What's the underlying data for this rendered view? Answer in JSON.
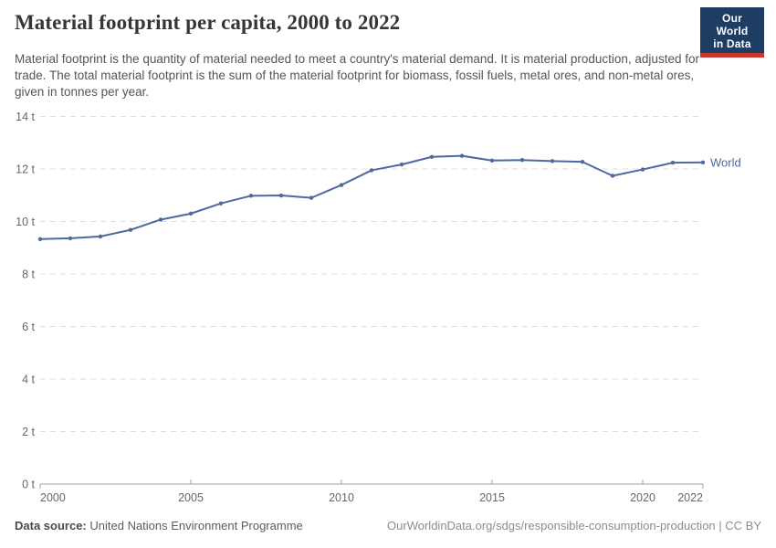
{
  "header": {
    "title": "Material footprint per capita, 2000 to 2022",
    "subtitle": "Material footprint is the quantity of material needed to meet a country's material demand. It is material production, adjusted for trade. The total material footprint is the sum of the material footprint for biomass, fossil fuels, metal ores, and non-metal ores, given in tonnes per year.",
    "logo": {
      "line1": "Our World",
      "line2": "in Data",
      "bg_color": "#1d3d63",
      "accent_color": "#c8362d"
    }
  },
  "chart_data": {
    "type": "line",
    "title": "Material footprint per capita, 2000 to 2022",
    "x": [
      2000,
      2001,
      2002,
      2003,
      2004,
      2005,
      2006,
      2007,
      2008,
      2009,
      2010,
      2011,
      2012,
      2013,
      2014,
      2015,
      2016,
      2017,
      2018,
      2019,
      2020,
      2021,
      2022
    ],
    "series": [
      {
        "name": "World",
        "color": "#4c6a9c",
        "values": [
          9.33,
          9.36,
          9.43,
          9.68,
          10.07,
          10.3,
          10.69,
          10.98,
          10.99,
          10.9,
          11.39,
          11.95,
          12.17,
          12.46,
          12.5,
          12.32,
          12.34,
          12.3,
          12.27,
          11.74,
          11.98,
          12.24,
          12.25
        ]
      }
    ],
    "unit_suffix": " t",
    "ylim": [
      0,
      14
    ],
    "yticks": [
      0,
      2,
      4,
      6,
      8,
      10,
      12,
      14
    ],
    "xticks": [
      2000,
      2005,
      2010,
      2015,
      2020,
      2022
    ],
    "xlabel": "",
    "ylabel": "",
    "grid": "horizontal-dashed",
    "legend_position": "end-of-line"
  },
  "footer": {
    "source_label": "Data source:",
    "source": "United Nations Environment Programme",
    "url": "OurWorldinData.org/sdgs/responsible-consumption-production",
    "separator": " | ",
    "license": "CC BY"
  }
}
